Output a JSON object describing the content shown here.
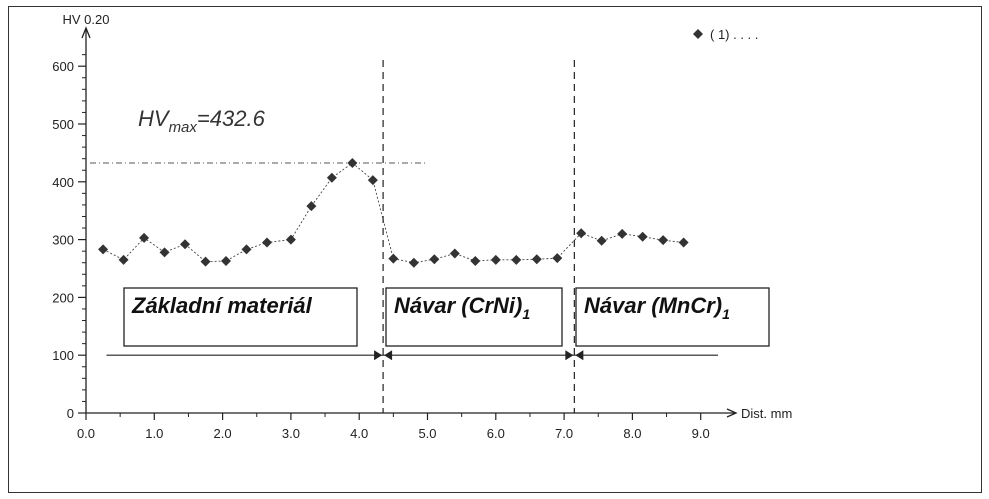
{
  "chart_data": {
    "type": "line",
    "ylabel": "HV 0.20",
    "xlabel": "Dist. mm",
    "ylim": [
      0,
      650
    ],
    "xlim": [
      0,
      9.5
    ],
    "yticks": [
      0,
      100,
      200,
      300,
      400,
      500,
      600
    ],
    "xticks": [
      "0.0",
      "1.0",
      "2.0",
      "3.0",
      "4.0",
      "5.0",
      "6.0",
      "7.0",
      "8.0",
      "9.0"
    ],
    "ytick_labels": [
      "0",
      "100",
      "200",
      "300",
      "400",
      "500",
      "600"
    ],
    "legend": {
      "marker_label": "( 1) . . . .",
      "position": "top-right"
    },
    "annotation": {
      "prefix": "HV",
      "subscript": "max",
      "suffix": "=432.6",
      "value": 432.6
    },
    "boundaries_x": [
      4.35,
      7.15
    ],
    "regions": [
      {
        "name": "Základní materiál",
        "subscript": "",
        "x_start": 0.3,
        "x_end": 4.35
      },
      {
        "name": "Návar  (CrNi)",
        "subscript": "1",
        "x_start": 4.35,
        "x_end": 7.15
      },
      {
        "name": "Návar  (MnCr)",
        "subscript": "1",
        "x_start": 7.15,
        "x_end": 9.4
      }
    ],
    "series": [
      {
        "segment": 1,
        "x": [
          0.25,
          0.55,
          0.85,
          1.15,
          1.45,
          1.75,
          2.05,
          2.35,
          2.65,
          3.0,
          3.3,
          3.6,
          3.9,
          4.2
        ],
        "values": [
          283,
          265,
          303,
          278,
          292,
          262,
          263,
          283,
          295,
          300,
          358,
          407,
          432.6,
          403
        ]
      },
      {
        "segment": 2,
        "x": [
          4.5,
          4.8,
          5.1,
          5.4,
          5.7,
          6.0,
          6.3,
          6.6,
          6.9
        ],
        "values": [
          267,
          260,
          266,
          276,
          263,
          265,
          265,
          266,
          268
        ]
      },
      {
        "segment": 3,
        "x": [
          7.25,
          7.55,
          7.85,
          8.15,
          8.45,
          8.75
        ],
        "values": [
          311,
          298,
          310,
          305,
          299,
          295
        ]
      }
    ],
    "grid": false,
    "colors": {
      "marker": "#333333",
      "line": "#444444",
      "axis": "#222222"
    }
  }
}
